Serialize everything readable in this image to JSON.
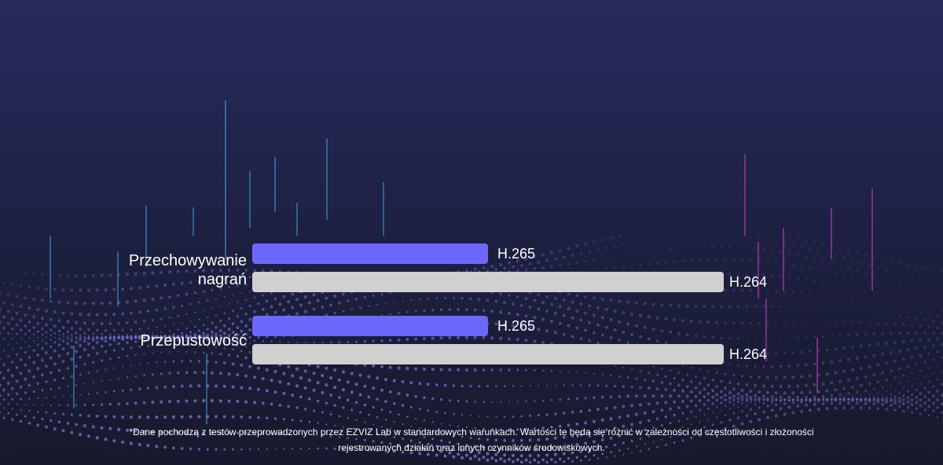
{
  "chart_data": {
    "type": "bar",
    "orientation": "horizontal",
    "categories": [
      "Przechowywanie nagrań",
      "Przepustowość"
    ],
    "series": [
      {
        "name": "H.265",
        "values": [
          50,
          50
        ],
        "color": "#6c68fb"
      },
      {
        "name": "H.264",
        "values": [
          100,
          100
        ],
        "color": "#d0d0d0"
      }
    ],
    "xlim": [
      0,
      100
    ],
    "grid": false,
    "legend": "none"
  },
  "footnote": "*Dane pochodzą z testów przeprowadzonych przez EZVIZ Lab w standardowych warunkach. Wartości te będą się różnić w zależności od częstotliwości i złożoności rejestrowanych działań oraz innych czynników środowiskowych."
}
